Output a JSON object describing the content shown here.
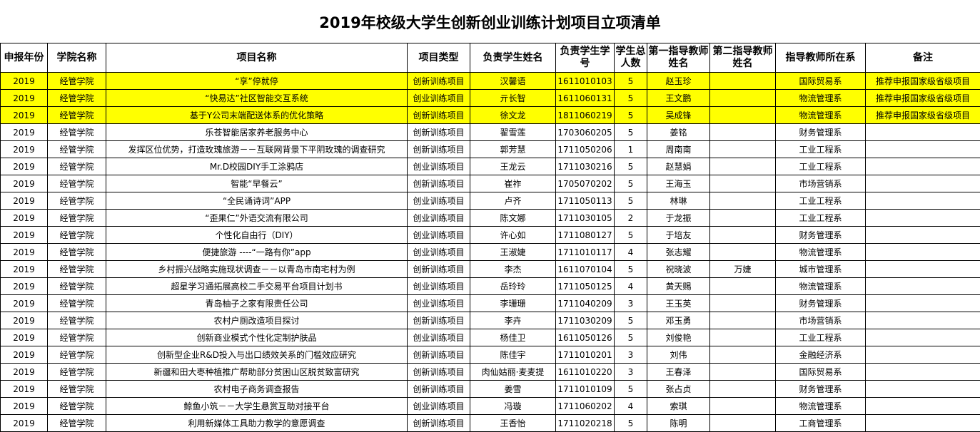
{
  "title": "2019年校级大学生创新创业训练计划项目立项清单",
  "table": {
    "header": [
      "申报年份",
      "学院名称",
      "项目名称",
      "项目类型",
      "负责学生姓名",
      "负责学生学号",
      "学生总人数",
      "第一指导教师姓名",
      "第二指导教师姓名",
      "指导教师所在系",
      "备注"
    ],
    "rows": [
      {
        "year": "2019",
        "college": "经管学院",
        "project": "“享”停就停",
        "type": "创新训练项目",
        "student": "汉馨语",
        "id": "1611010103",
        "count": 5,
        "advisor1": "赵玉珍",
        "dept": "国际贸易系",
        "note": "推荐申报国家级省级项目"
      },
      {
        "year": "2019",
        "college": "经管学院",
        "project": "“快易达”社区智能交互系统",
        "type": "创业训练项目",
        "student": "亓长智",
        "id": "1611060131",
        "count": 5,
        "advisor1": "王文鹏",
        "dept": "物流管理系",
        "note": "推荐申报国家级省级项目"
      },
      {
        "year": "2019",
        "college": "经管学院",
        "project": "基于Y公司末端配送体系的优化策略",
        "type": "创新训练项目",
        "student": "徐文龙",
        "id": "1811060219",
        "count": 5,
        "advisor1": "吴成锋",
        "dept": "物流管理系",
        "note": "推荐申报国家级省级项目"
      },
      {
        "year": "2019",
        "college": "经管学院",
        "project": "乐苍智能居家养老服务中心",
        "type": "创新训练项目",
        "student": "翟雪莲",
        "id": "1703060205",
        "count": 5,
        "advisor1": "姜铭",
        "dept": "财务管理系"
      },
      {
        "year": "2019",
        "college": "经管学院",
        "project": "发挥区位优势，打造玫瑰旅游－－互联网背景下平阴玫瑰的调查研究",
        "type": "创新训练项目",
        "student": "郭芳慧",
        "id": "1711050206",
        "count": 1,
        "advisor1": "周南南",
        "dept": "工业工程系"
      },
      {
        "year": "2019",
        "college": "经管学院",
        "project": "Mr.D校园DIY手工涂鸦店",
        "type": "创业训练项目",
        "student": "王龙云",
        "id": "1711030216",
        "count": 5,
        "advisor1": "赵慧娟",
        "dept": "工业工程系"
      },
      {
        "year": "2019",
        "college": "经管学院",
        "project": "智能“早餐云”",
        "type": "创新训练项目",
        "student": "崔祚",
        "id": "1705070202",
        "count": 5,
        "advisor1": "王海玉",
        "dept": "市场营销系"
      },
      {
        "year": "2019",
        "college": "经管学院",
        "project": "“全民诵诗词”APP",
        "type": "创业训练项目",
        "student": "卢齐",
        "id": "1711050113",
        "count": 5,
        "advisor1": "林琳",
        "dept": "工业工程系"
      },
      {
        "year": "2019",
        "college": "经管学院",
        "project": "“歪果仁”外语交流有限公司",
        "type": "创业训练项目",
        "student": "陈文娜",
        "id": "1711030105",
        "count": 2,
        "advisor1": "于龙振",
        "dept": "工业工程系"
      },
      {
        "year": "2019",
        "college": "经管学院",
        "project": "个性化自由行（DIY）",
        "type": "创业训练项目",
        "student": "许心如",
        "id": "1711080127",
        "count": 5,
        "advisor1": "于培友",
        "dept": "财务管理系"
      },
      {
        "year": "2019",
        "college": "经管学院",
        "project": "便捷旅游 ----“一路有你”app",
        "type": "创业训练项目",
        "student": "王淑婕",
        "id": "1711010117",
        "count": 4,
        "advisor1": "张志耀",
        "dept": "物流管理系"
      },
      {
        "year": "2019",
        "college": "经管学院",
        "project": "乡村振兴战略实施现状调查－－以青岛市南宅村为例",
        "type": "创新训练项目",
        "student": "李杰",
        "id": "1611070104",
        "count": 5,
        "advisor1": "祝晓波",
        "advisor2": "万婕",
        "dept": "城市管理系"
      },
      {
        "year": "2019",
        "college": "经管学院",
        "project": "超星学习通拓展高校二手交易平台项目计划书",
        "type": "创业训练项目",
        "student": "岳玲玲",
        "id": "1711050125",
        "count": 4,
        "advisor1": "黄天赐",
        "dept": "物流管理系"
      },
      {
        "year": "2019",
        "college": "经管学院",
        "project": "青岛柚子之家有限责任公司",
        "type": "创业训练项目",
        "student": "李珊珊",
        "id": "1711040209",
        "count": 3,
        "advisor1": "王玉英",
        "dept": "财务管理系"
      },
      {
        "year": "2019",
        "college": "经管学院",
        "project": "农村户厕改造项目探讨",
        "type": "创新训练项目",
        "student": "李卉",
        "id": "1711030209",
        "count": 5,
        "advisor1": "邓玉勇",
        "dept": "市场营销系"
      },
      {
        "year": "2019",
        "college": "经管学院",
        "project": "创新商业模式个性化定制护肤品",
        "type": "创业训练项目",
        "student": "杨佳卫",
        "id": "1611050126",
        "count": 5,
        "advisor1": "刘俊艳",
        "dept": "工业工程系"
      },
      {
        "year": "2019",
        "college": "经管学院",
        "project": "创新型企业R&D投入与出口绩效关系的门槛效应研究",
        "type": "创新训练项目",
        "student": "陈佳宇",
        "id": "1711010201",
        "count": 3,
        "advisor1": "刘伟",
        "dept": "金融经济系"
      },
      {
        "year": "2019",
        "college": "经管学院",
        "project": "新疆和田大枣种植推广帮助部分贫困山区脱贫致富研究",
        "type": "创新训练项目",
        "student": "肉仙姑丽·麦麦提",
        "id": "1611010220",
        "count": 3,
        "advisor1": "王春泽",
        "dept": "国际贸易系"
      },
      {
        "year": "2019",
        "college": "经管学院",
        "project": "农村电子商务调查报告",
        "type": "创新训练项目",
        "student": "姜雪",
        "id": "1711010109",
        "count": 5,
        "advisor1": "张占贞",
        "dept": "财务管理系"
      },
      {
        "year": "2019",
        "college": "经管学院",
        "project": "鲸鱼小筑－－大学生悬赏互助对接平台",
        "type": "创业训练项目",
        "student": "冯璇",
        "id": "1711060202",
        "count": 4,
        "advisor1": "索琪",
        "dept": "物流管理系"
      },
      {
        "year": "2019",
        "college": "经管学院",
        "project": "利用新媒体工具助力教学的意愿调查",
        "type": "创新训练项目",
        "student": "王香怡",
        "id": "1711020218",
        "count": 5,
        "advisor1": "陈明",
        "dept": "工商管理系"
      }
    ]
  }
}
